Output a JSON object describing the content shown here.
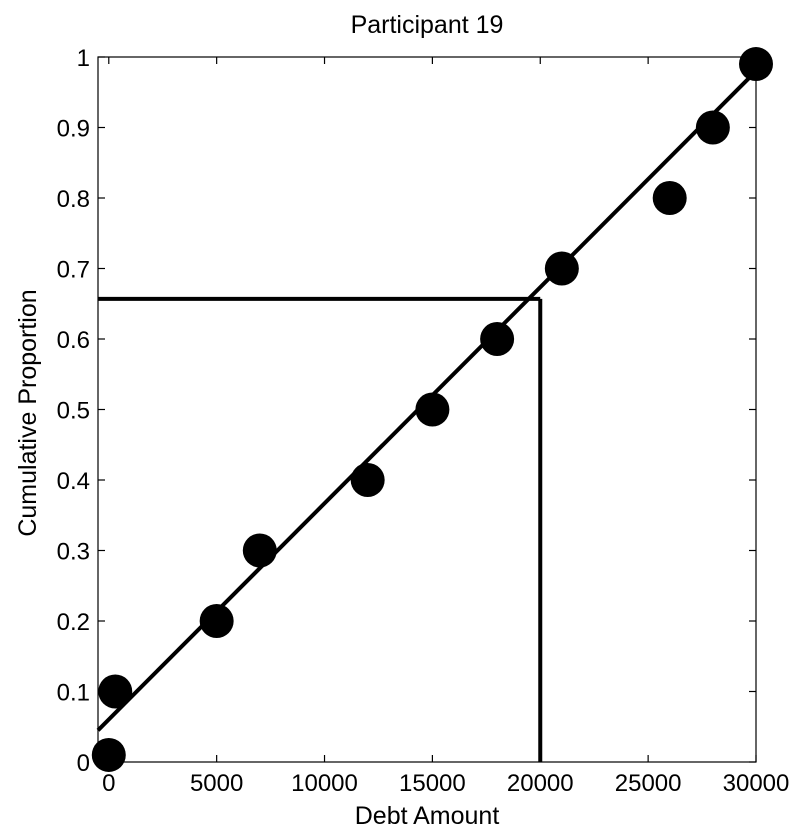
{
  "chart_data": {
    "type": "scatter",
    "title": "Participant 19",
    "xlabel": "Debt Amount",
    "ylabel": "Cumulative Proportion",
    "xlim": [
      -500,
      30000
    ],
    "ylim": [
      0,
      1
    ],
    "xticks": [
      0,
      5000,
      10000,
      15000,
      20000,
      25000,
      30000
    ],
    "yticks": [
      0,
      0.1,
      0.2,
      0.3,
      0.4,
      0.5,
      0.6,
      0.7,
      0.8,
      0.9,
      1
    ],
    "xtick_labels": [
      "0",
      "5000",
      "10000",
      "15000",
      "20000",
      "25000",
      "30000"
    ],
    "ytick_labels": [
      "0",
      "0.1",
      "0.2",
      "0.3",
      "0.4",
      "0.5",
      "0.6",
      "0.7",
      "0.8",
      "0.9",
      "1"
    ],
    "grid": false,
    "series": [
      {
        "x": [
          0,
          300,
          5000,
          7000,
          12000,
          15000,
          18000,
          21000,
          26000,
          28000,
          30000
        ],
        "y": [
          0.01,
          0.1,
          0.2,
          0.3,
          0.4,
          0.5,
          0.6,
          0.7,
          0.8,
          0.9,
          0.99
        ]
      }
    ],
    "fit_line": {
      "x": [
        -500,
        30000
      ],
      "y": [
        0.045,
        0.98
      ]
    },
    "reference_point": {
      "x": 20000,
      "y": 0.657
    },
    "colors": {
      "marker": "#000000",
      "line": "#000000",
      "axes": "#000000"
    }
  }
}
